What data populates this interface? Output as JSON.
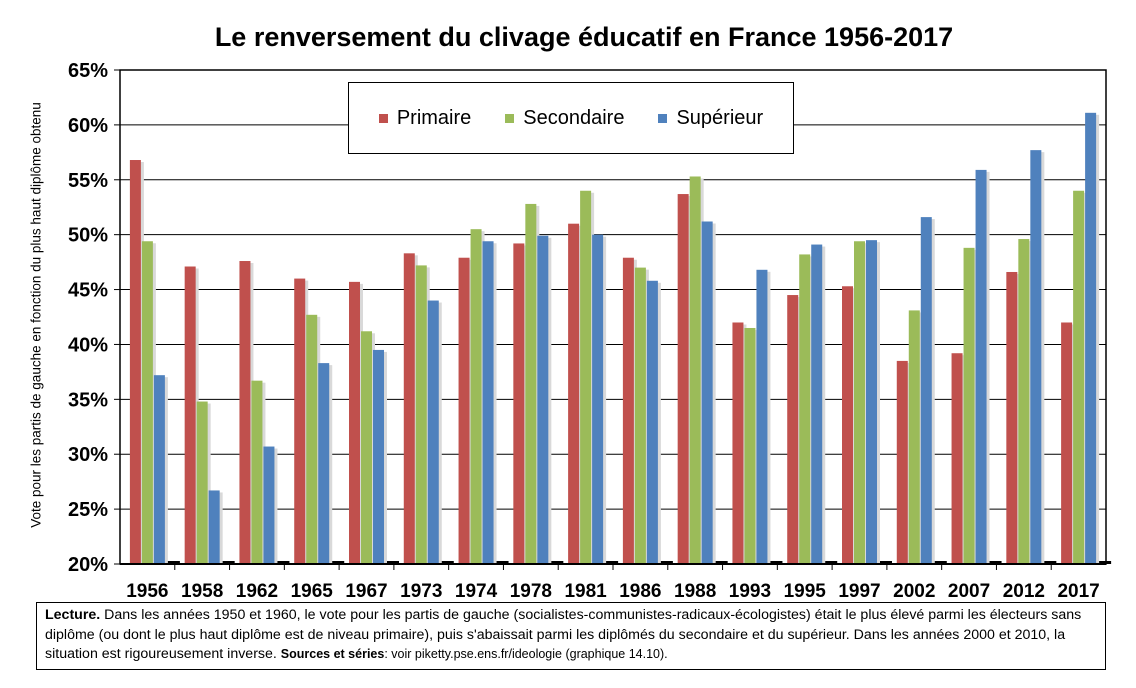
{
  "chart_data": {
    "type": "bar",
    "title": "Le renversement du clivage éducatif en France 1956-2017",
    "ylabel": "Vote pour les partis de gauche en fonction du plus haut diplôme obtenu",
    "xlabel": "",
    "ylim": [
      20,
      65
    ],
    "yticks": [
      "20%",
      "25%",
      "30%",
      "35%",
      "40%",
      "45%",
      "50%",
      "55%",
      "60%",
      "65%"
    ],
    "grid": true,
    "legend_position": "top-center",
    "categories": [
      "1956",
      "1958",
      "1962",
      "1965",
      "1967",
      "1973",
      "1974",
      "1978",
      "1981",
      "1986",
      "1988",
      "1993",
      "1995",
      "1997",
      "2002",
      "2007",
      "2012",
      "2017"
    ],
    "series": [
      {
        "name": "Primaire",
        "color": "#c0504d",
        "values": [
          56.8,
          47.1,
          47.6,
          46.0,
          45.7,
          48.3,
          47.9,
          49.2,
          51.0,
          47.9,
          53.7,
          42.0,
          44.5,
          45.3,
          38.5,
          39.2,
          46.6,
          42.0
        ]
      },
      {
        "name": "Secondaire",
        "color": "#9bbb59",
        "values": [
          49.4,
          34.8,
          36.7,
          42.7,
          41.2,
          47.2,
          50.5,
          52.8,
          54.0,
          47.0,
          55.3,
          41.5,
          48.2,
          49.4,
          43.1,
          48.8,
          49.6,
          54.0
        ]
      },
      {
        "name": "Supérieur",
        "color": "#4f81bd",
        "values": [
          37.2,
          26.7,
          30.7,
          38.3,
          39.5,
          44.0,
          49.4,
          49.9,
          50.0,
          45.8,
          51.2,
          46.8,
          49.1,
          49.5,
          51.6,
          55.9,
          57.7,
          61.1
        ]
      }
    ]
  },
  "note": {
    "lecture_label": "Lecture.",
    "lecture_text": " Dans les années 1950 et 1960, le vote pour les partis de gauche (socialistes-communistes-radicaux-écologistes) était le plus élevé parmi les électeurs sans diplôme (ou dont le plus haut diplôme est de niveau primaire), puis s'abaissait parmi les diplômés du secondaire et du supérieur. Dans les années 2000 et 2010, la situation est rigoureusement inverse. ",
    "sources_label": "Sources et séries",
    "sources_text": ": voir piketty.pse.ens.fr/ideologie (graphique 14.10)."
  }
}
